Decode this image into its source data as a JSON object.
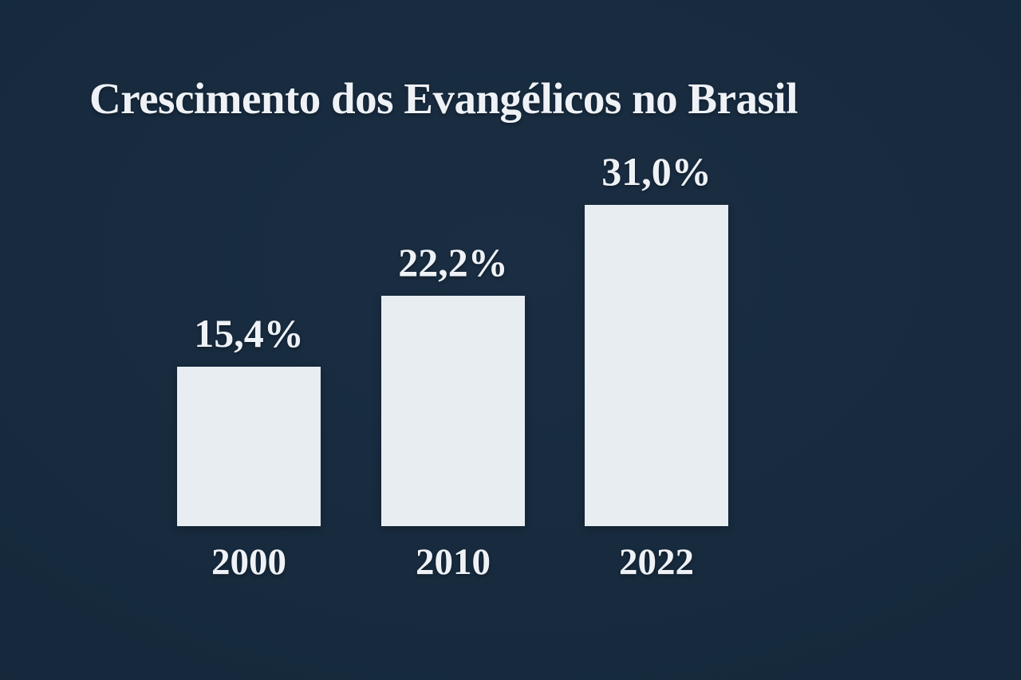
{
  "colors": {
    "background": "#16293c",
    "background_edge": "#122031",
    "bar": "#e8edf1",
    "text": "#eef2f6"
  },
  "chart_data": {
    "type": "bar",
    "title": "Crescimento dos Evangélicos no Brasil",
    "categories": [
      "2000",
      "2010",
      "2022"
    ],
    "values": [
      15.4,
      22.2,
      31.0
    ],
    "value_labels": [
      "15,4%",
      "22,2%",
      "31,0%"
    ],
    "unit": "%",
    "xlabel": "",
    "ylabel": "",
    "ylim": [
      0,
      31
    ],
    "grid": false,
    "legend": false,
    "bar_color": "#e8edf1",
    "background_color": "#16293c",
    "label_position": "above-bars"
  }
}
